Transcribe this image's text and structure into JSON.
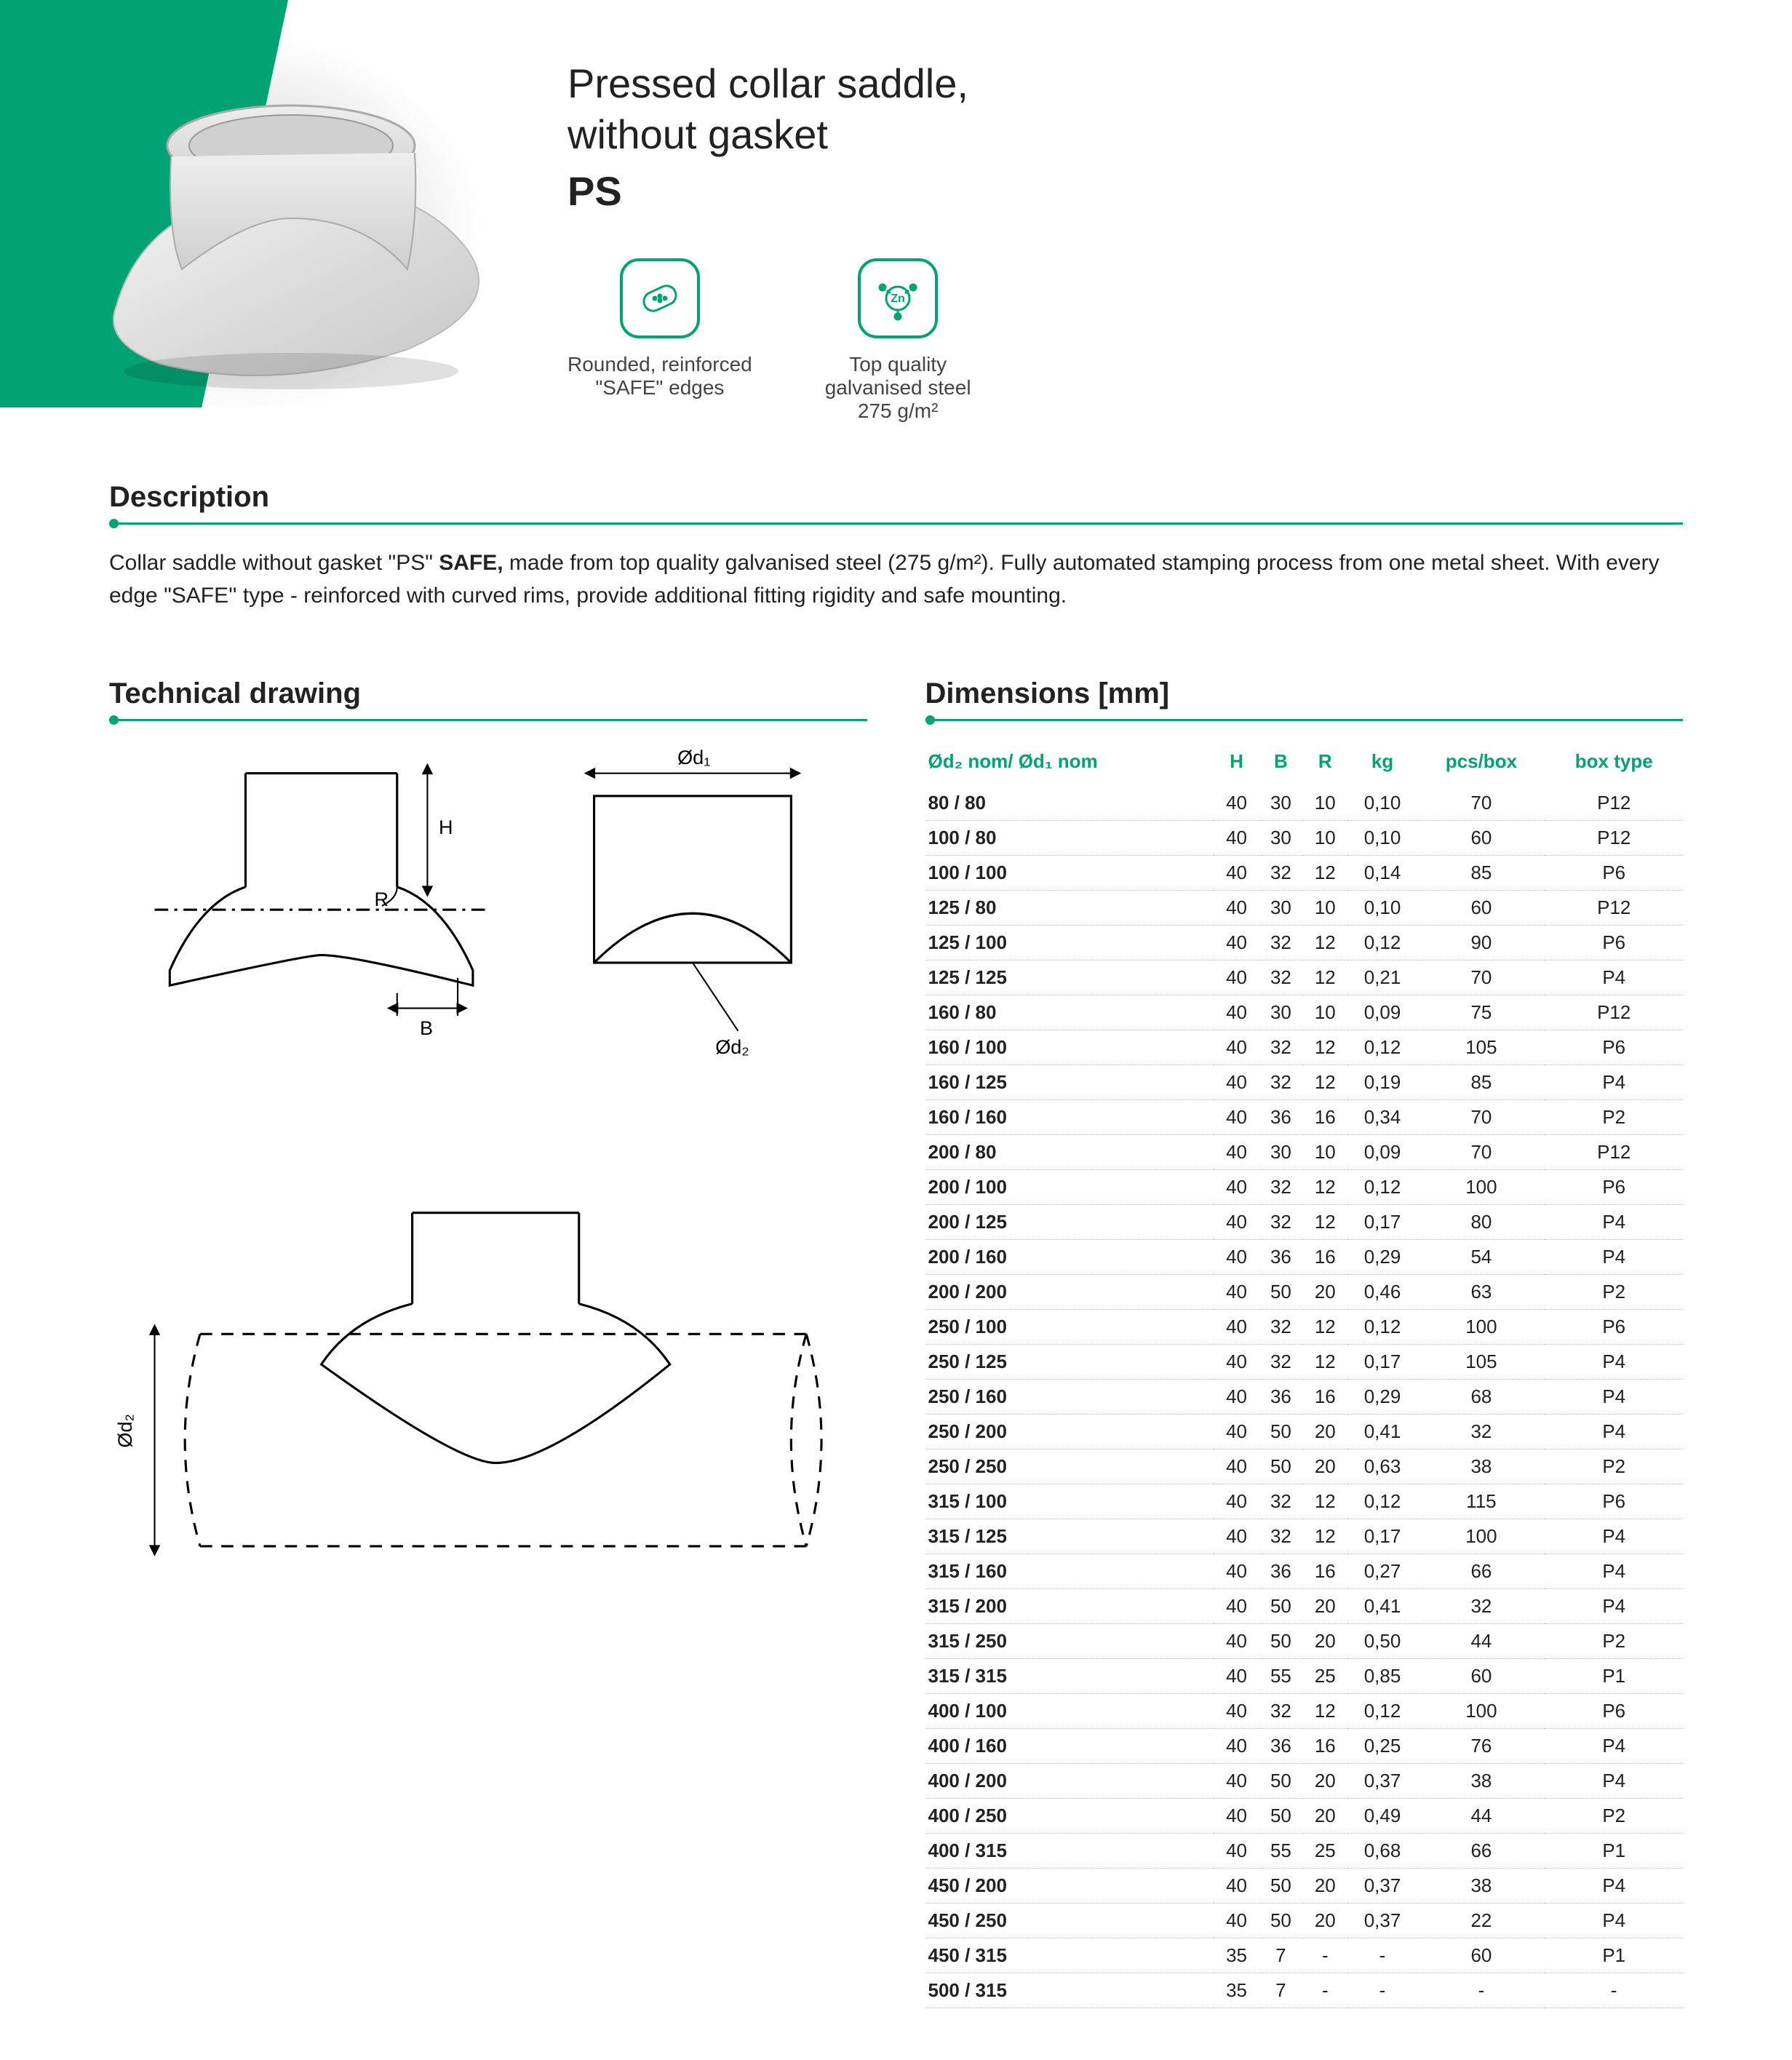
{
  "hero": {
    "title_l1": "Pressed collar saddle,",
    "title_l2": "without gasket",
    "code": "PS"
  },
  "features": [
    {
      "icon": "safe-edge-icon",
      "line1": "Rounded, reinforced",
      "line2": "\"SAFE\" edges",
      "line3": ""
    },
    {
      "icon": "zinc-icon",
      "line1": "Top quality",
      "line2": "galvanised steel",
      "line3": "275 g/m²"
    }
  ],
  "description": {
    "heading": "Description",
    "text_pre": "Collar saddle without gasket \"PS\" ",
    "bold": "SAFE,",
    "text_post": " made from top quality galvanised steel (275 g/m²). Fully automated stamping process from one metal sheet. With every edge \"SAFE'' type - reinforced with curved rims, provide additional fitting rigidity and safe mounting."
  },
  "tech": {
    "heading": "Technical drawing",
    "labels": {
      "d1": "Ød₁",
      "d2": "Ød₂",
      "H": "H",
      "B": "B",
      "R": "R"
    }
  },
  "dims": {
    "heading": "Dimensions [mm]",
    "columns": [
      "Ød₂ nom/ Ød₁ nom",
      "H",
      "B",
      "R",
      "kg",
      "pcs/box",
      "box type"
    ],
    "rows": [
      [
        "80 / 80",
        "40",
        "30",
        "10",
        "0,10",
        "70",
        "P12"
      ],
      [
        "100 / 80",
        "40",
        "30",
        "10",
        "0,10",
        "60",
        "P12"
      ],
      [
        "100 / 100",
        "40",
        "32",
        "12",
        "0,14",
        "85",
        "P6"
      ],
      [
        "125 / 80",
        "40",
        "30",
        "10",
        "0,10",
        "60",
        "P12"
      ],
      [
        "125 / 100",
        "40",
        "32",
        "12",
        "0,12",
        "90",
        "P6"
      ],
      [
        "125 / 125",
        "40",
        "32",
        "12",
        "0,21",
        "70",
        "P4"
      ],
      [
        "160 / 80",
        "40",
        "30",
        "10",
        "0,09",
        "75",
        "P12"
      ],
      [
        "160 / 100",
        "40",
        "32",
        "12",
        "0,12",
        "105",
        "P6"
      ],
      [
        "160 / 125",
        "40",
        "32",
        "12",
        "0,19",
        "85",
        "P4"
      ],
      [
        "160 / 160",
        "40",
        "36",
        "16",
        "0,34",
        "70",
        "P2"
      ],
      [
        "200 / 80",
        "40",
        "30",
        "10",
        "0,09",
        "70",
        "P12"
      ],
      [
        "200 / 100",
        "40",
        "32",
        "12",
        "0,12",
        "100",
        "P6"
      ],
      [
        "200 / 125",
        "40",
        "32",
        "12",
        "0,17",
        "80",
        "P4"
      ],
      [
        "200 / 160",
        "40",
        "36",
        "16",
        "0,29",
        "54",
        "P4"
      ],
      [
        "200 / 200",
        "40",
        "50",
        "20",
        "0,46",
        "63",
        "P2"
      ],
      [
        "250 / 100",
        "40",
        "32",
        "12",
        "0,12",
        "100",
        "P6"
      ],
      [
        "250 / 125",
        "40",
        "32",
        "12",
        "0,17",
        "105",
        "P4"
      ],
      [
        "250 / 160",
        "40",
        "36",
        "16",
        "0,29",
        "68",
        "P4"
      ],
      [
        "250 / 200",
        "40",
        "50",
        "20",
        "0,41",
        "32",
        "P4"
      ],
      [
        "250 / 250",
        "40",
        "50",
        "20",
        "0,63",
        "38",
        "P2"
      ],
      [
        "315 / 100",
        "40",
        "32",
        "12",
        "0,12",
        "115",
        "P6"
      ],
      [
        "315 / 125",
        "40",
        "32",
        "12",
        "0,17",
        "100",
        "P4"
      ],
      [
        "315 / 160",
        "40",
        "36",
        "16",
        "0,27",
        "66",
        "P4"
      ],
      [
        "315 / 200",
        "40",
        "50",
        "20",
        "0,41",
        "32",
        "P4"
      ],
      [
        "315 / 250",
        "40",
        "50",
        "20",
        "0,50",
        "44",
        "P2"
      ],
      [
        "315 / 315",
        "40",
        "55",
        "25",
        "0,85",
        "60",
        "P1"
      ],
      [
        "400 / 100",
        "40",
        "32",
        "12",
        "0,12",
        "100",
        "P6"
      ],
      [
        "400 / 160",
        "40",
        "36",
        "16",
        "0,25",
        "76",
        "P4"
      ],
      [
        "400 / 200",
        "40",
        "50",
        "20",
        "0,37",
        "38",
        "P4"
      ],
      [
        "400 / 250",
        "40",
        "50",
        "20",
        "0,49",
        "44",
        "P2"
      ],
      [
        "400 / 315",
        "40",
        "55",
        "25",
        "0,68",
        "66",
        "P1"
      ],
      [
        "450 / 200",
        "40",
        "50",
        "20",
        "0,37",
        "38",
        "P4"
      ],
      [
        "450 / 250",
        "40",
        "50",
        "20",
        "0,37",
        "22",
        "P4"
      ],
      [
        "450 / 315",
        "35",
        "7",
        "-",
        "-",
        "60",
        "P1"
      ],
      [
        "500 / 315",
        "35",
        "7",
        "-",
        "-",
        "-",
        "-"
      ]
    ]
  },
  "colors": {
    "accent": "#00a373",
    "text": "#222222",
    "muted": "#666666",
    "border": "#bbbbbb"
  }
}
